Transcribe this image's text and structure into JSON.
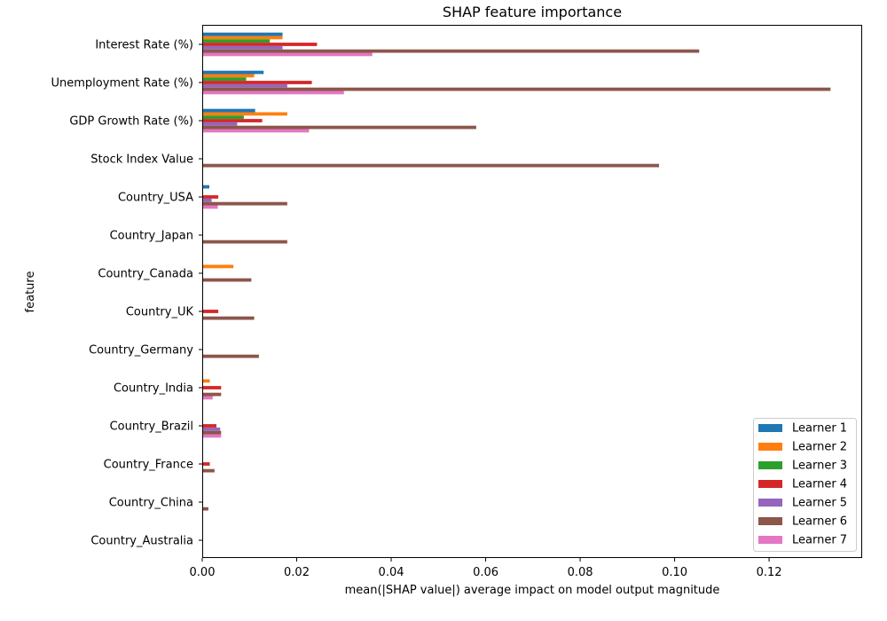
{
  "chart_data": {
    "type": "bar",
    "orientation": "horizontal",
    "title": "SHAP feature importance",
    "xlabel": "mean(|SHAP value|) average impact on model output magnitude",
    "ylabel": "feature",
    "xlim": [
      0,
      0.1397
    ],
    "xticks": [
      "0.00",
      "0.02",
      "0.04",
      "0.06",
      "0.08",
      "0.10",
      "0.12"
    ],
    "xtick_values": [
      0,
      0.02,
      0.04,
      0.06,
      0.08,
      0.1,
      0.12
    ],
    "grid": false,
    "legend_position": "bottom-right",
    "categories": [
      "Interest Rate (%)",
      "Unemployment Rate (%)",
      "GDP Growth Rate (%)",
      "Stock Index Value",
      "Country_USA",
      "Country_Japan",
      "Country_Canada",
      "Country_UK",
      "Country_Germany",
      "Country_India",
      "Country_Brazil",
      "Country_France",
      "Country_China",
      "Country_Australia"
    ],
    "series": [
      {
        "name": "Learner 1",
        "color": "#1f77b4",
        "values": [
          0.017,
          0.013,
          0.0112,
          0,
          0.0015,
          0,
          0,
          0,
          0,
          0,
          0,
          0,
          0,
          0
        ]
      },
      {
        "name": "Learner 2",
        "color": "#ff7f0e",
        "values": [
          0.017,
          0.011,
          0.018,
          0,
          0,
          0,
          0.0066,
          0,
          0,
          0.0016,
          0,
          0,
          0,
          0
        ]
      },
      {
        "name": "Learner 3",
        "color": "#2ca02c",
        "values": [
          0.0143,
          0.0093,
          0.0088,
          0,
          0,
          0,
          0,
          0,
          0,
          0,
          0,
          0,
          0,
          0
        ]
      },
      {
        "name": "Learner 4",
        "color": "#d62728",
        "values": [
          0.0243,
          0.0232,
          0.0127,
          0,
          0.0034,
          0,
          0,
          0.0034,
          0,
          0.004,
          0.003,
          0.0016,
          0,
          0
        ]
      },
      {
        "name": "Learner 5",
        "color": "#9467bd",
        "values": [
          0.017,
          0.018,
          0.0074,
          0,
          0.002,
          0,
          0,
          0,
          0,
          0,
          0.0038,
          0,
          0,
          0
        ]
      },
      {
        "name": "Learner 6",
        "color": "#8c564b",
        "values": [
          0.1052,
          0.133,
          0.058,
          0.0967,
          0.018,
          0.018,
          0.0104,
          0.011,
          0.012,
          0.004,
          0.004,
          0.0026,
          0.0013,
          0
        ]
      },
      {
        "name": "Learner 7",
        "color": "#e377c2",
        "values": [
          0.036,
          0.03,
          0.0226,
          0,
          0.0033,
          0,
          0,
          0,
          0,
          0.0022,
          0.004,
          0,
          0,
          0
        ]
      }
    ]
  }
}
